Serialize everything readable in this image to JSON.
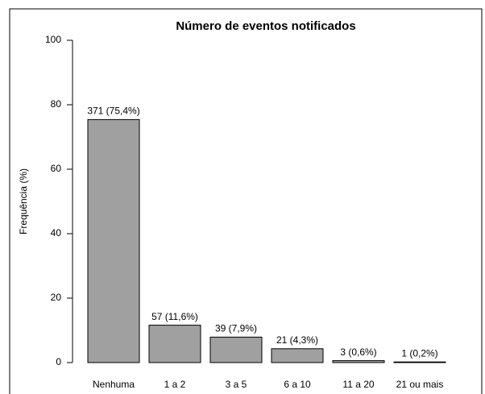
{
  "chart_data": {
    "type": "bar",
    "title": "Número de eventos notificados",
    "ylabel": "Frequência (%)",
    "categories": [
      "Nenhuma",
      "1 a 2",
      "3 a 5",
      "6 a 10",
      "11 a 20",
      "21 ou mais"
    ],
    "values": [
      75.4,
      11.6,
      7.9,
      4.3,
      0.6,
      0.2
    ],
    "value_labels": [
      "371 (75,4%)",
      "57 (11,6%)",
      "39 (7,9%)",
      "21 (4,3%)",
      "3 (0,6%)",
      "1 (0,2%)"
    ],
    "color": "#a0a0a0",
    "ylim": [
      0,
      100
    ],
    "yticks": [
      0,
      20,
      40,
      60,
      80,
      100
    ],
    "grid": false
  }
}
